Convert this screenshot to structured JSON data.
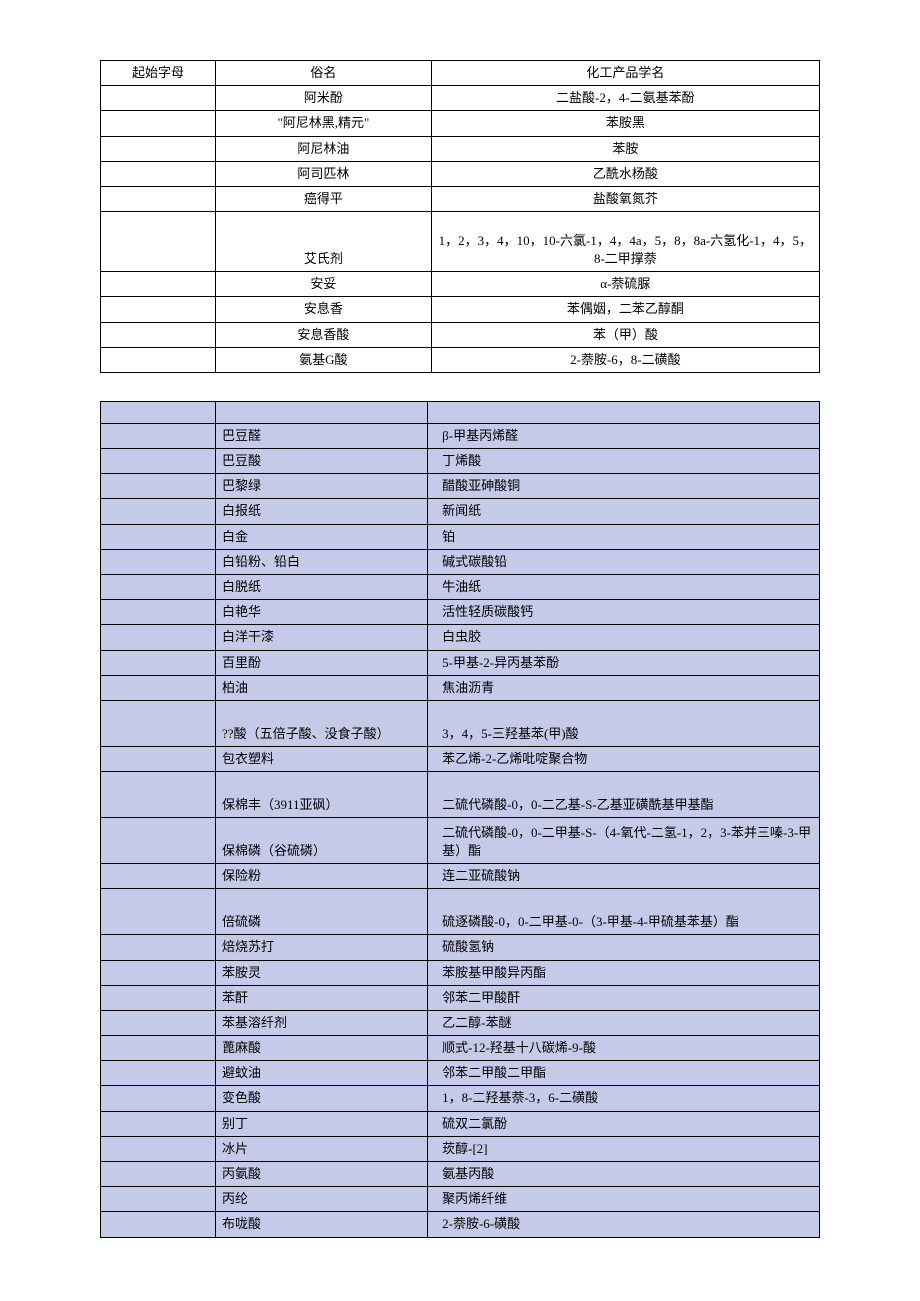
{
  "table1": {
    "headers": {
      "c1": "起始字母",
      "c2": "俗名",
      "c3": "化工产品学名"
    },
    "rows": [
      {
        "c1": "",
        "c2": "阿米酚",
        "c3": "二盐酸-2，4-二氨基苯酚"
      },
      {
        "c1": "",
        "c2": "\"阿尼林黑,精元\"",
        "c3": "苯胺黑"
      },
      {
        "c1": "",
        "c2": "阿尼林油",
        "c3": "苯胺"
      },
      {
        "c1": "",
        "c2": "阿司匹林",
        "c3": "乙酰水杨酸"
      },
      {
        "c1": "",
        "c2": "癌得平",
        "c3": "盐酸氧氮芥"
      },
      {
        "c1": "",
        "c2": "艾氏剂",
        "c3": "1，2，3，4，10，10-六氯-1，4，4a，5，8，8a-六氢化-1，4，5，8-二甲撑萘",
        "tall": true
      },
      {
        "c1": "",
        "c2": "安妥",
        "c3": "α-萘硫脲"
      },
      {
        "c1": "",
        "c2": "安息香",
        "c3": "苯偶姻，二苯乙醇酮"
      },
      {
        "c1": "",
        "c2": "安息香酸",
        "c3": "苯（甲）酸"
      },
      {
        "c1": "",
        "c2": "氨基G酸",
        "c3": "2-萘胺-6，8-二磺酸"
      }
    ]
  },
  "table2": {
    "rows": [
      {
        "empty": true
      },
      {
        "c2": "巴豆醛",
        "c3": "β-甲基丙烯醛"
      },
      {
        "c2": "巴豆酸",
        "c3": "丁烯酸"
      },
      {
        "c2": "巴黎绿",
        "c3": "醋酸亚砷酸铜"
      },
      {
        "c2": "白报纸",
        "c3": "新闻纸"
      },
      {
        "c2": "白金",
        "c3": "铂"
      },
      {
        "c2": "白铅粉、铅白",
        "c3": "碱式碳酸铅"
      },
      {
        "c2": "白脱纸",
        "c3": "牛油纸"
      },
      {
        "c2": "白艳华",
        "c3": "活性轻质碳酸钙"
      },
      {
        "c2": "白洋干漆",
        "c3": "白虫胶"
      },
      {
        "c2": "百里酚",
        "c3": "5-甲基-2-异丙基苯酚"
      },
      {
        "c2": "柏油",
        "c3": "焦油沥青"
      },
      {
        "c2": "??酸（五倍子酸、没食子酸）",
        "c3": "3，4，5-三羟基苯(甲)酸",
        "tall": true
      },
      {
        "c2": "包衣塑料",
        "c3": "苯乙烯-2-乙烯吡啶聚合物"
      },
      {
        "c2": "保棉丰（3911亚砜）",
        "c3": "二硫代磷酸-0，0-二乙基-S-乙基亚磺酰基甲基酯",
        "tall": true
      },
      {
        "c2": "保棉磷（谷硫磷）",
        "c3": "二硫代磷酸-0，0-二甲基-S-（4-氧代-二氢-1，2，3-苯并三嗪-3-甲基）酯",
        "tall": true
      },
      {
        "c2": "保险粉",
        "c3": "连二亚硫酸钠"
      },
      {
        "c2": "倍硫磷",
        "c3": "硫逐磷酸-0，0-二甲基-0-（3-甲基-4-甲硫基苯基）酯",
        "tall": true
      },
      {
        "c2": "焙烧苏打",
        "c3": "硫酸氢钠"
      },
      {
        "c2": "苯胺灵",
        "c3": "苯胺基甲酸异丙酯"
      },
      {
        "c2": "苯酐",
        "c3": "邻苯二甲酸酐"
      },
      {
        "c2": "苯基溶纤剂",
        "c3": "乙二醇-苯醚"
      },
      {
        "c2": "蓖麻酸",
        "c3": "顺式-12-羟基十八碳烯-9-酸"
      },
      {
        "c2": "避蚊油",
        "c3": "邻苯二甲酸二甲酯"
      },
      {
        "c2": "变色酸",
        "c3": "1，8-二羟基萘-3，6-二磺酸"
      },
      {
        "c2": "别丁",
        "c3": "硫双二氯酚"
      },
      {
        "c2": "冰片",
        "c3": "莰醇-[2]"
      },
      {
        "c2": "丙氨酸",
        "c3": "氨基丙酸"
      },
      {
        "c2": "丙纶",
        "c3": "聚丙烯纤维"
      },
      {
        "c2": "布咙酸",
        "c3": "2-萘胺-6-磺酸"
      }
    ]
  }
}
